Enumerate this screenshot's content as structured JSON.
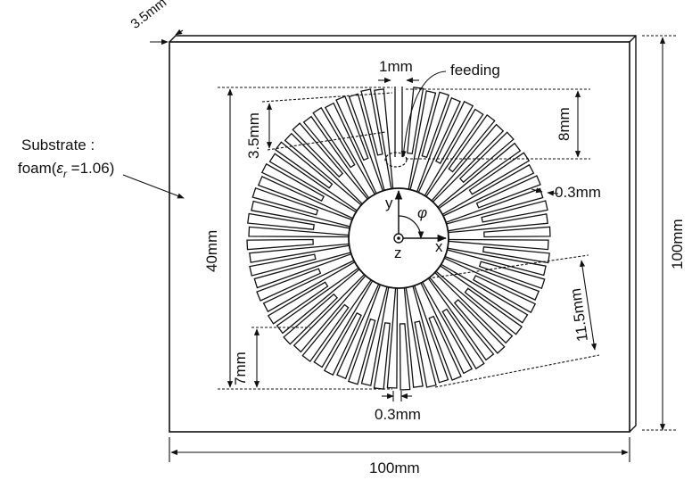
{
  "labels": {
    "thickness": "3.5mm",
    "gap_top": "1mm",
    "feeding": "feeding",
    "substrate_line1": "Substrate :",
    "substrate_line2_pre": "foam(",
    "substrate_epsilon": "ε",
    "substrate_sub": "r",
    "substrate_line2_post": " =1.06)",
    "outer_diameter": "40mm",
    "arm_width_top": "3.5mm",
    "arm_length_right_top": "8mm",
    "slot_width_right": "0.3mm",
    "y_axis": "y",
    "phi": "φ",
    "z_axis": "z",
    "x_axis": "x",
    "arm_length_right_bottom": "11.5mm",
    "arm_length_left_bottom": "7mm",
    "slot_width_bottom": "0.3mm",
    "board_height": "100mm",
    "board_width": "100mm"
  },
  "colors": {
    "line": "#111111",
    "background": "#ffffff"
  }
}
